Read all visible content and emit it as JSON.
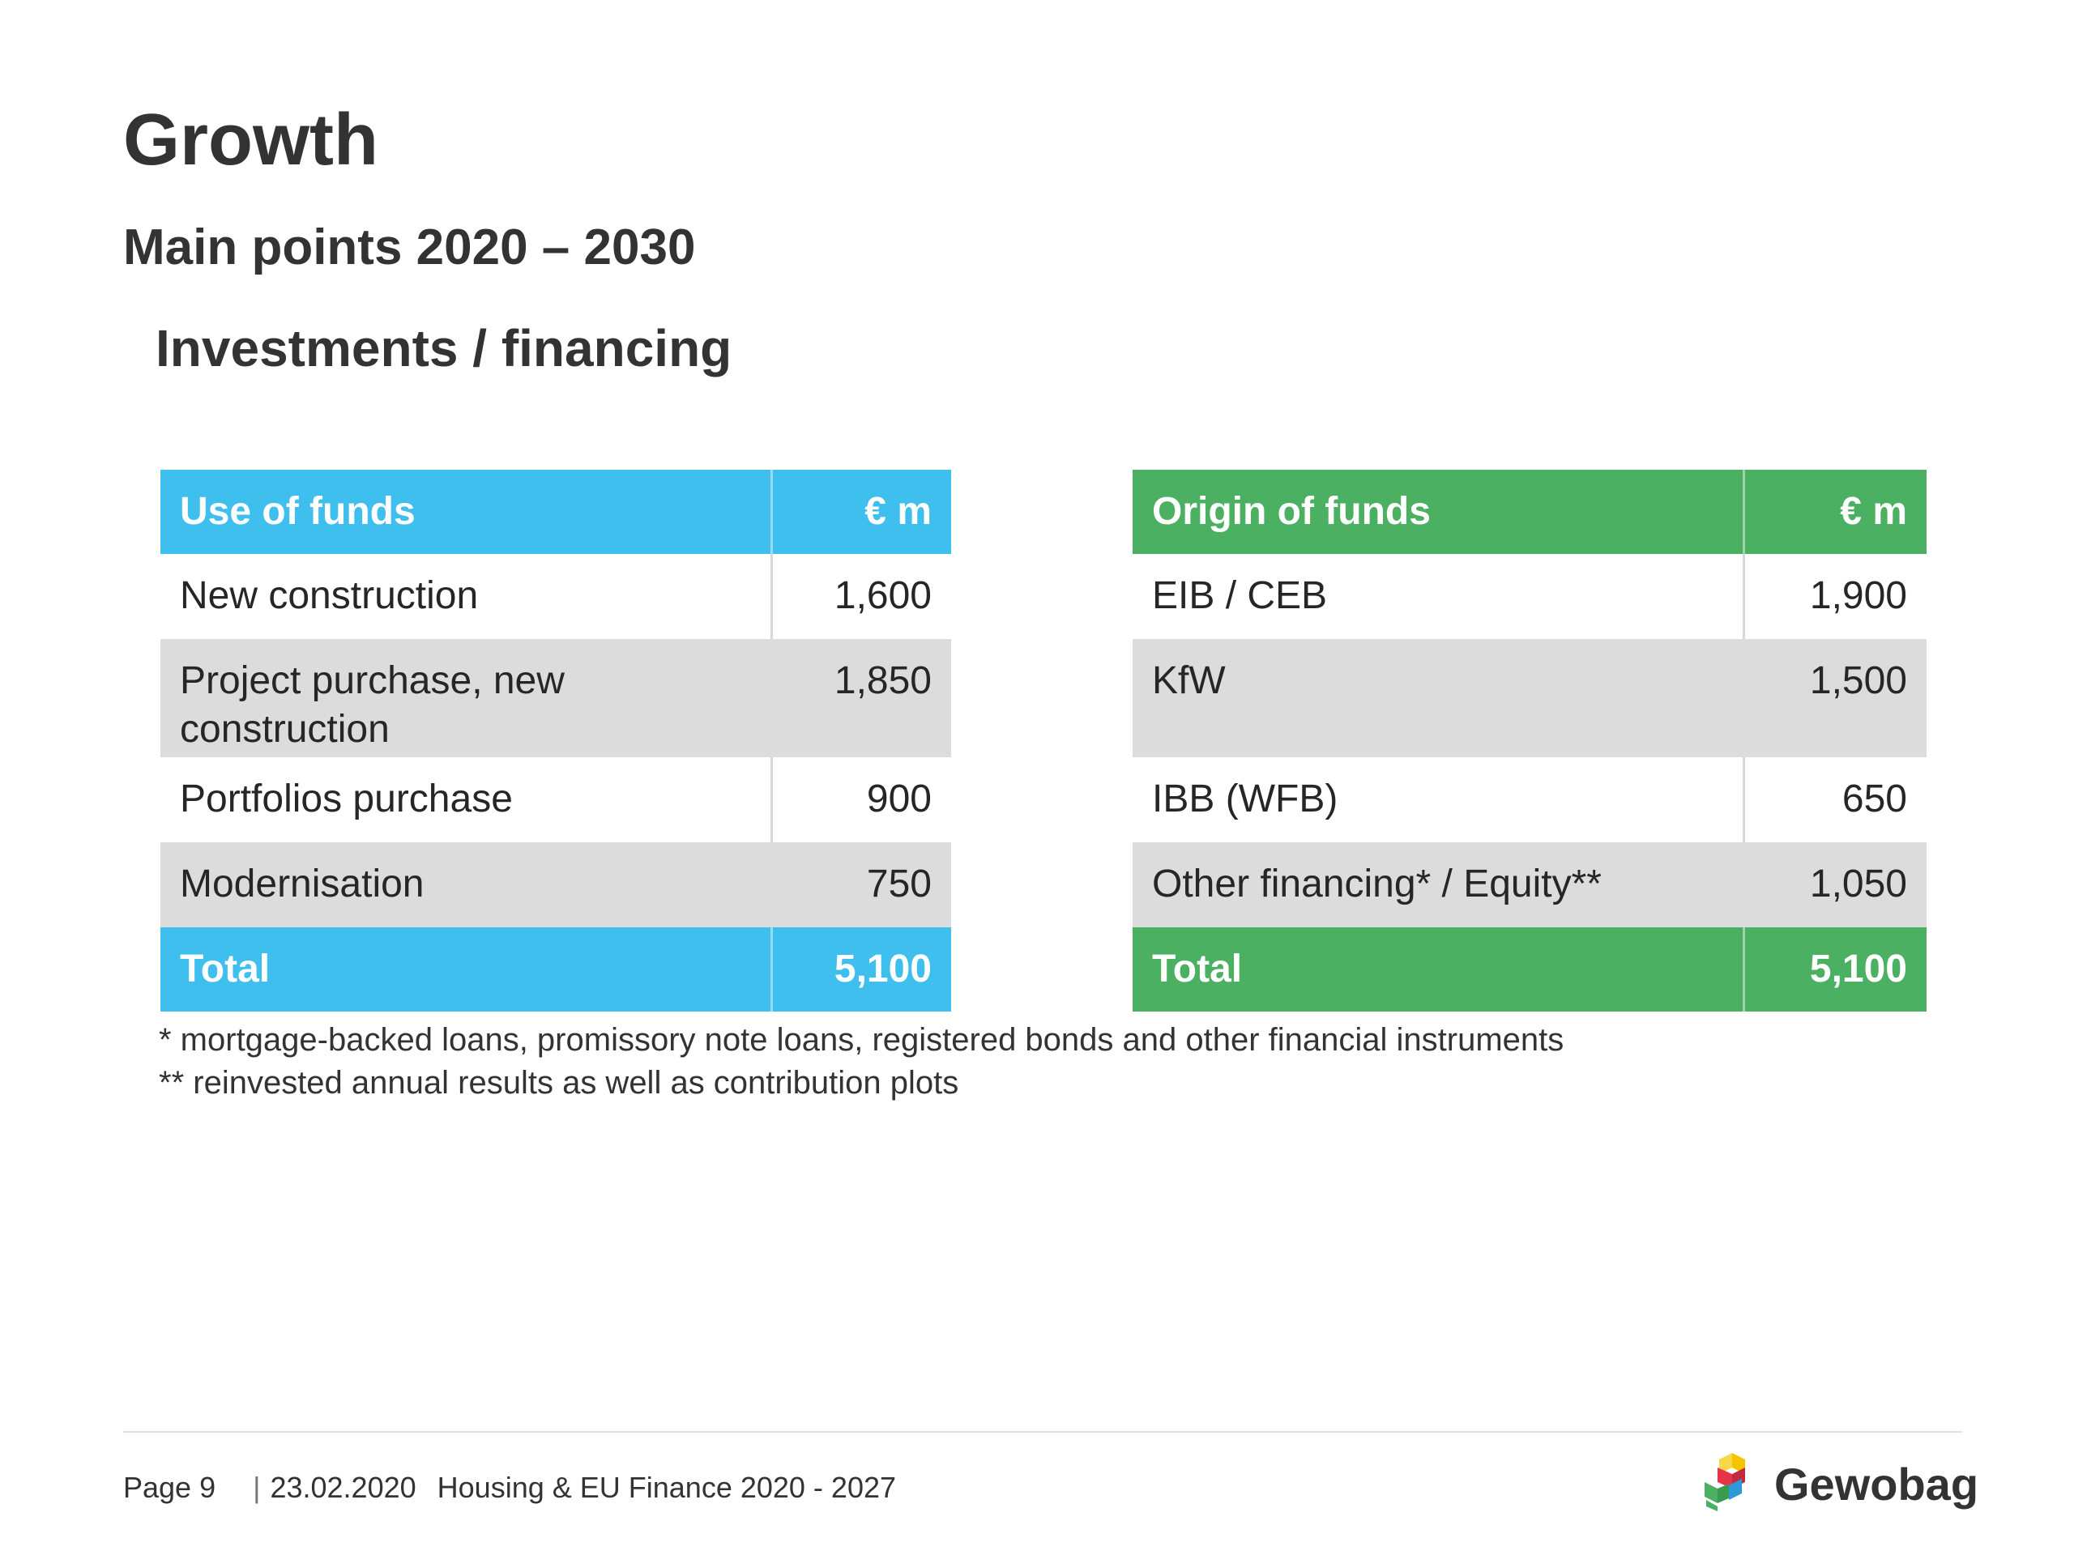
{
  "title": "Growth",
  "subtitle": "Main points 2020 – 2030",
  "section": "Investments / financing",
  "use_of_funds": {
    "header": [
      "Use of funds",
      "€ m"
    ],
    "rows": [
      {
        "label": "New construction",
        "value": "1,600"
      },
      {
        "label": "Project purchase, new construction",
        "value": "1,850"
      },
      {
        "label": "Portfolios purchase",
        "value": "900"
      },
      {
        "label": "Modernisation",
        "value": "750"
      }
    ],
    "total": {
      "label": "Total",
      "value": "5,100"
    }
  },
  "origin_of_funds": {
    "header": [
      "Origin of funds",
      "€ m"
    ],
    "rows": [
      {
        "label": "EIB / CEB",
        "value": "1,900"
      },
      {
        "label": "KfW",
        "value": "1,500"
      },
      {
        "label": "IBB (WFB)",
        "value": "650"
      },
      {
        "label": "Other financing* / Equity**",
        "value": "1,050"
      }
    ],
    "total": {
      "label": "Total",
      "value": "5,100"
    }
  },
  "footnotes": [
    " * mortgage-backed loans, promissory note loans, registered bonds and other financial instruments",
    "** reinvested annual results as well as contribution plots"
  ],
  "footer": {
    "page": "Page 9",
    "separator": "|",
    "date": "23.02.2020",
    "doc_title": "Housing & EU Finance 2020 - 2027"
  },
  "logo": {
    "name": "Gewobag",
    "colors": [
      "#f4c400",
      "#e8334a",
      "#2d9ad7",
      "#4cb062"
    ]
  },
  "colors": {
    "use_accent": "#3fbfee",
    "origin_accent": "#4cb062",
    "row_grey": "#dcdcdc"
  }
}
